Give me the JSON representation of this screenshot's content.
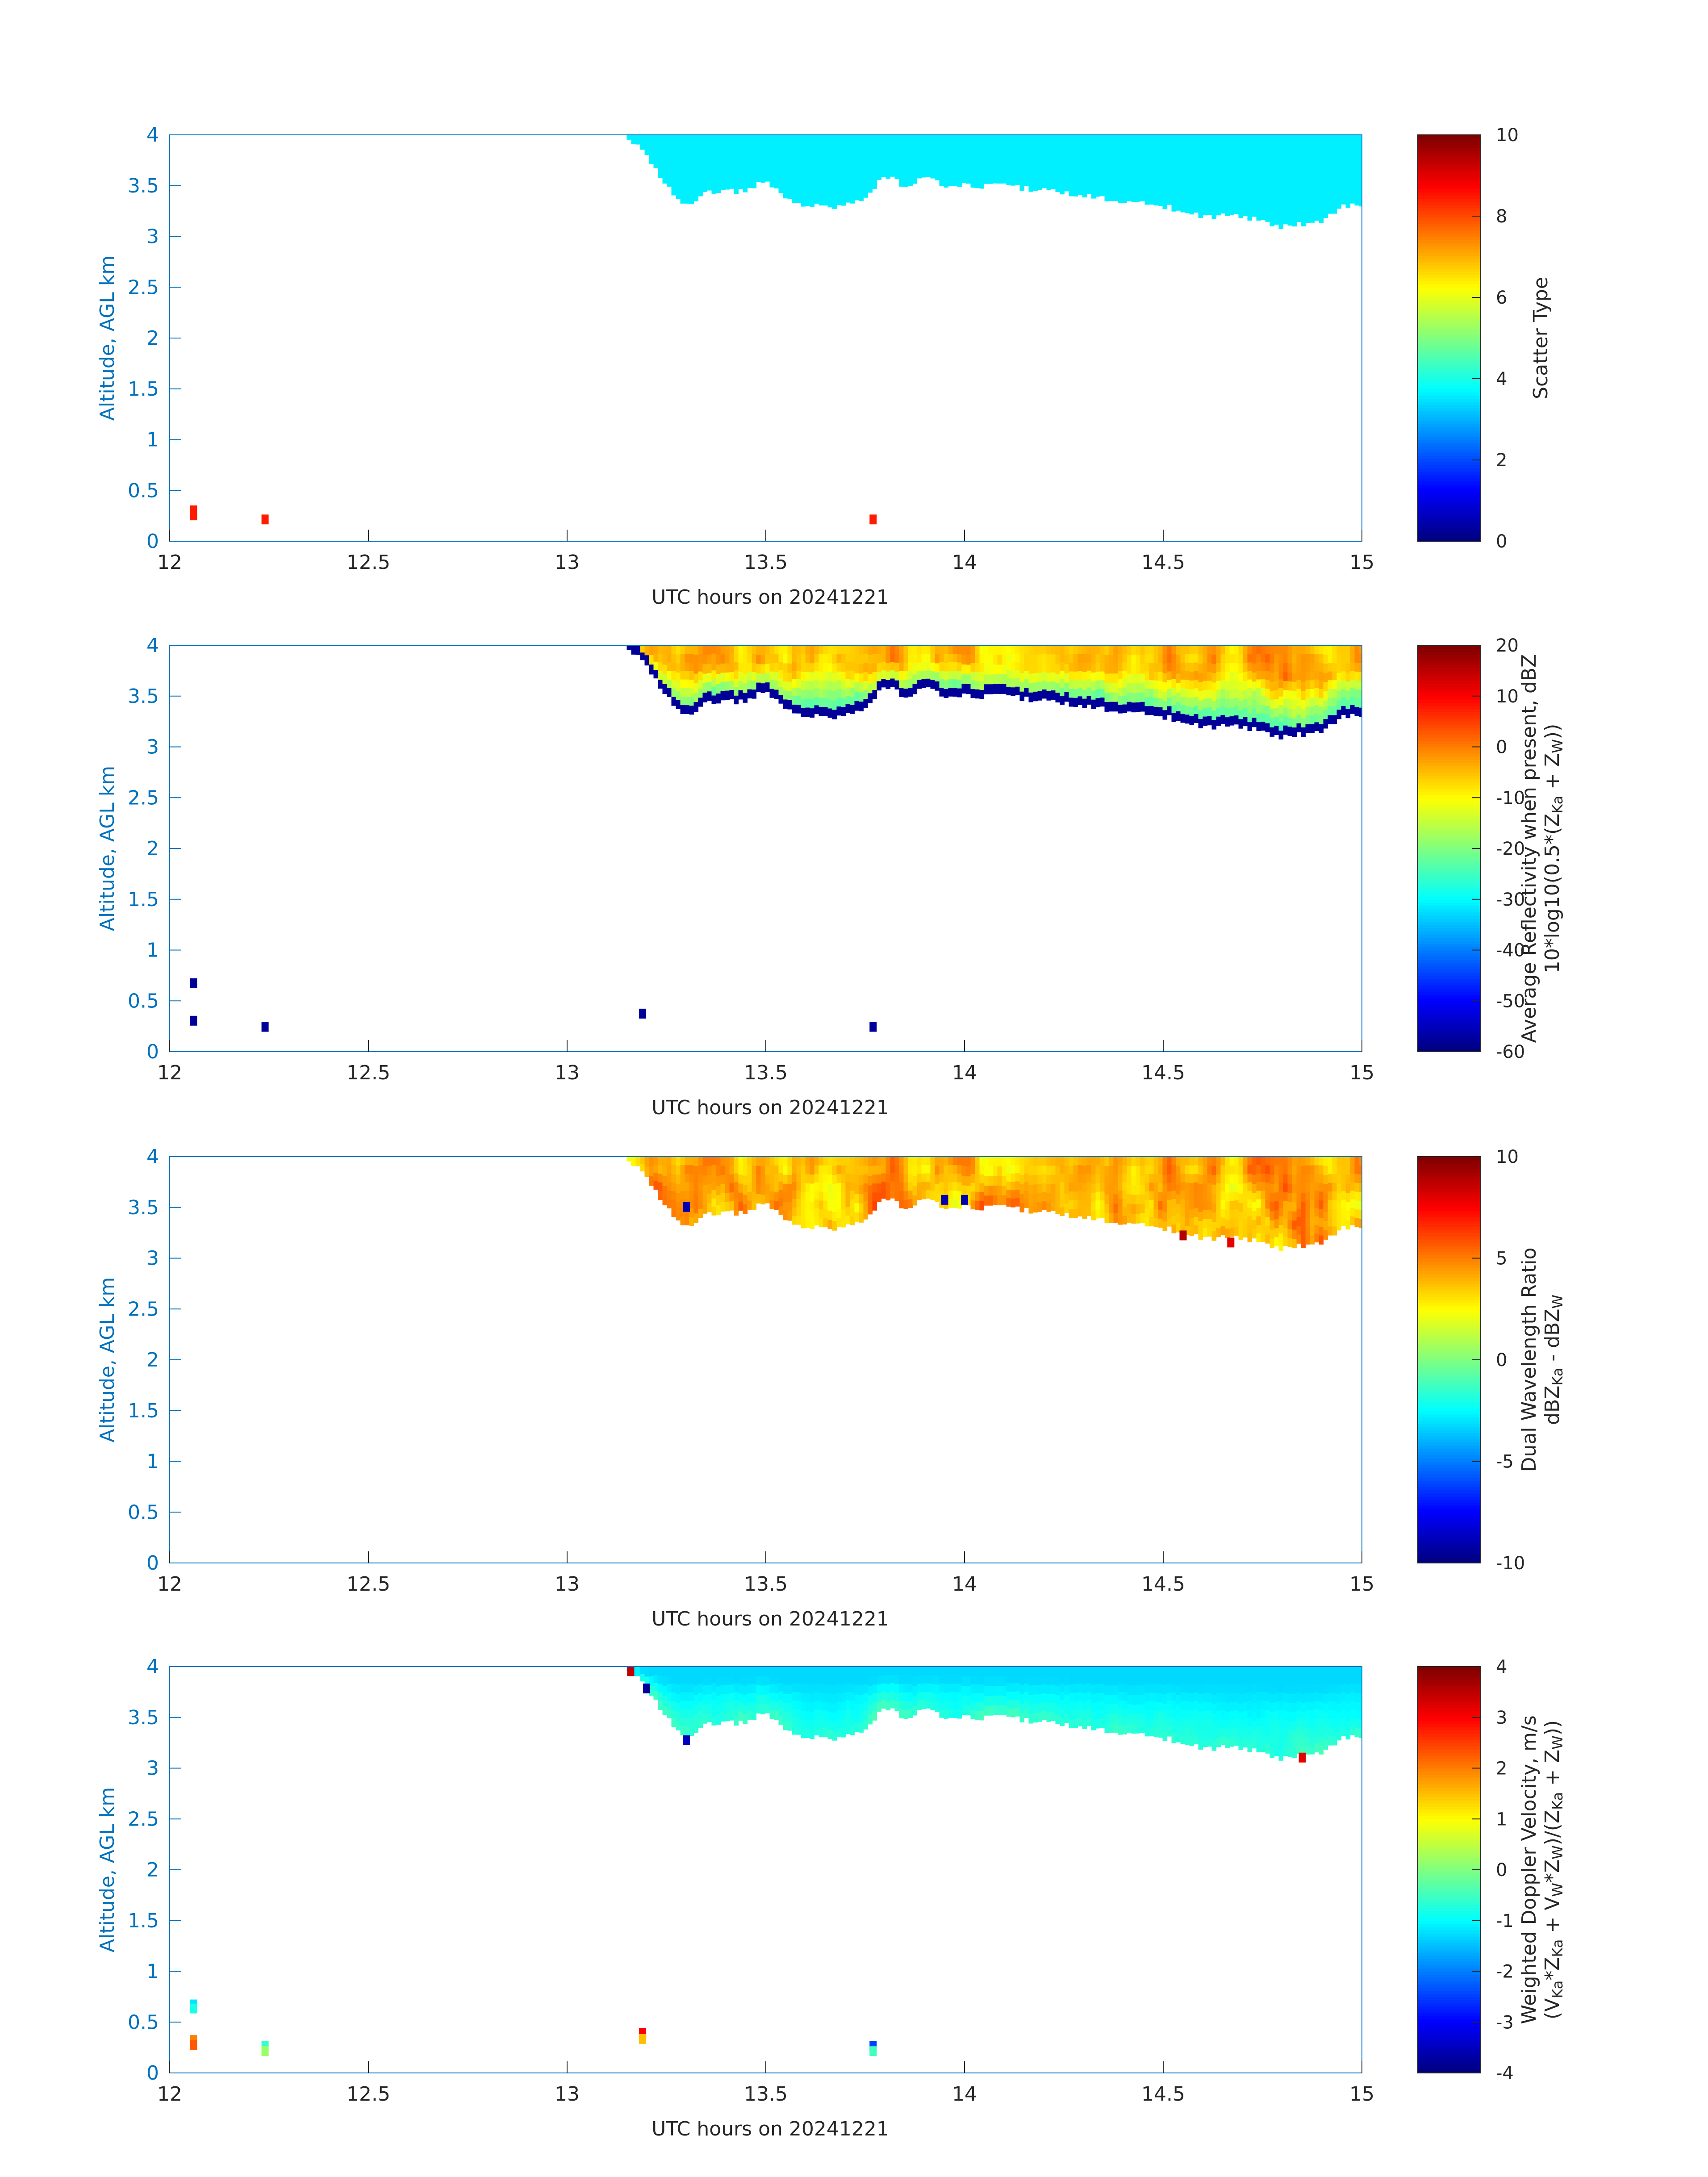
{
  "figure": {
    "background": "#ffffff",
    "axis_color": "#0072BD",
    "text_color": "#262626"
  },
  "chart_data": [
    {
      "type": "heatmap",
      "title": "",
      "xlabel": "UTC hours on 20241221",
      "ylabel": "Altitude, AGL km",
      "xlim": [
        12,
        15
      ],
      "ylim": [
        0,
        4
      ],
      "xticks": [
        "12",
        "12.5",
        "13",
        "13.5",
        "14",
        "14.5",
        "15"
      ],
      "yticks": [
        "0",
        "0.5",
        "1",
        "1.5",
        "2",
        "2.5",
        "3",
        "3.5",
        "4"
      ],
      "colorbar": {
        "label_lines": [
          "Scatter Type"
        ],
        "range": [
          0,
          10
        ],
        "ticks": [
          "0",
          "2",
          "4",
          "6",
          "8",
          "10"
        ],
        "colormap": "jet"
      },
      "layer": {
        "mode": "uniform",
        "value": 3.6
      },
      "cloud_top_km": 4.0,
      "cloud_base_km": [
        [
          13.15,
          4.0
        ],
        [
          13.2,
          3.8
        ],
        [
          13.25,
          3.5
        ],
        [
          13.3,
          3.3
        ],
        [
          13.35,
          3.45
        ],
        [
          13.45,
          3.45
        ],
        [
          13.5,
          3.55
        ],
        [
          13.55,
          3.4
        ],
        [
          13.6,
          3.3
        ],
        [
          13.7,
          3.3
        ],
        [
          13.75,
          3.4
        ],
        [
          13.8,
          3.6
        ],
        [
          13.85,
          3.5
        ],
        [
          13.9,
          3.6
        ],
        [
          13.95,
          3.5
        ],
        [
          14.0,
          3.5
        ],
        [
          14.1,
          3.5
        ],
        [
          14.2,
          3.45
        ],
        [
          14.3,
          3.4
        ],
        [
          14.4,
          3.35
        ],
        [
          14.5,
          3.3
        ],
        [
          14.6,
          3.2
        ],
        [
          14.7,
          3.2
        ],
        [
          14.8,
          3.1
        ],
        [
          14.9,
          3.15
        ],
        [
          14.95,
          3.3
        ],
        [
          15.0,
          3.3
        ]
      ],
      "points": [
        [
          12.06,
          0.3,
          8.5
        ],
        [
          12.06,
          0.25,
          8.5
        ],
        [
          12.24,
          0.21,
          8.5
        ],
        [
          13.77,
          0.21,
          8.5
        ]
      ]
    },
    {
      "type": "heatmap",
      "title": "",
      "xlabel": "UTC hours on 20241221",
      "ylabel": "Altitude, AGL km",
      "xlim": [
        12,
        15
      ],
      "ylim": [
        0,
        4
      ],
      "xticks": [
        "12",
        "12.5",
        "13",
        "13.5",
        "14",
        "14.5",
        "15"
      ],
      "yticks": [
        "0",
        "0.5",
        "1",
        "1.5",
        "2",
        "2.5",
        "3",
        "3.5",
        "4"
      ],
      "colorbar": {
        "label_lines": [
          "Average Reflectivity when present, dBZ",
          "10*log10(0.5*(Z_Ka + Z_W))"
        ],
        "range": [
          -60,
          20
        ],
        "ticks": [
          "-60",
          "-50",
          "-40",
          "-30",
          "-20",
          "-10",
          "0",
          "10",
          "20"
        ],
        "colormap": "jet"
      },
      "layer": {
        "mode": "reflectivity",
        "edge_value": -58,
        "core_range": [
          -35,
          4
        ]
      },
      "cloud_top_km": 4.0,
      "cloud_base_km": [
        [
          13.15,
          4.0
        ],
        [
          13.2,
          3.8
        ],
        [
          13.25,
          3.5
        ],
        [
          13.3,
          3.3
        ],
        [
          13.35,
          3.45
        ],
        [
          13.45,
          3.45
        ],
        [
          13.5,
          3.55
        ],
        [
          13.55,
          3.4
        ],
        [
          13.6,
          3.3
        ],
        [
          13.7,
          3.3
        ],
        [
          13.75,
          3.4
        ],
        [
          13.8,
          3.6
        ],
        [
          13.85,
          3.5
        ],
        [
          13.9,
          3.6
        ],
        [
          13.95,
          3.5
        ],
        [
          14.0,
          3.5
        ],
        [
          14.1,
          3.5
        ],
        [
          14.2,
          3.45
        ],
        [
          14.3,
          3.4
        ],
        [
          14.4,
          3.35
        ],
        [
          14.5,
          3.3
        ],
        [
          14.6,
          3.2
        ],
        [
          14.7,
          3.2
        ],
        [
          14.8,
          3.1
        ],
        [
          14.9,
          3.15
        ],
        [
          14.95,
          3.3
        ],
        [
          15.0,
          3.3
        ]
      ],
      "points": [
        [
          12.06,
          0.67,
          -58
        ],
        [
          12.06,
          0.3,
          -58
        ],
        [
          12.24,
          0.24,
          -58
        ],
        [
          13.19,
          0.37,
          -58
        ],
        [
          13.77,
          0.24,
          -58
        ]
      ]
    },
    {
      "type": "heatmap",
      "title": "",
      "xlabel": "UTC hours on 20241221",
      "ylabel": "Altitude, AGL km",
      "xlim": [
        12,
        15
      ],
      "ylim": [
        0,
        4
      ],
      "xticks": [
        "12",
        "12.5",
        "13",
        "13.5",
        "14",
        "14.5",
        "15"
      ],
      "yticks": [
        "0",
        "0.5",
        "1",
        "1.5",
        "2",
        "2.5",
        "3",
        "3.5",
        "4"
      ],
      "colorbar": {
        "label_lines": [
          "Dual Wavelength Ratio",
          "dBZ_Ka - dBZ_W"
        ],
        "range": [
          -10,
          10
        ],
        "ticks": [
          "-10",
          "-5",
          "0",
          "5",
          "10"
        ],
        "colormap": "jet"
      },
      "layer": {
        "mode": "dwr",
        "range": [
          1.5,
          6.5
        ]
      },
      "cloud_top_km": 4.0,
      "cloud_base_km": [
        [
          13.15,
          4.0
        ],
        [
          13.2,
          3.8
        ],
        [
          13.25,
          3.5
        ],
        [
          13.3,
          3.3
        ],
        [
          13.35,
          3.45
        ],
        [
          13.45,
          3.45
        ],
        [
          13.5,
          3.55
        ],
        [
          13.55,
          3.4
        ],
        [
          13.6,
          3.3
        ],
        [
          13.7,
          3.3
        ],
        [
          13.75,
          3.4
        ],
        [
          13.8,
          3.6
        ],
        [
          13.85,
          3.5
        ],
        [
          13.9,
          3.6
        ],
        [
          13.95,
          3.5
        ],
        [
          14.0,
          3.5
        ],
        [
          14.1,
          3.5
        ],
        [
          14.2,
          3.45
        ],
        [
          14.3,
          3.4
        ],
        [
          14.4,
          3.35
        ],
        [
          14.5,
          3.3
        ],
        [
          14.6,
          3.2
        ],
        [
          14.7,
          3.2
        ],
        [
          14.8,
          3.1
        ],
        [
          14.9,
          3.15
        ],
        [
          14.95,
          3.3
        ],
        [
          15.0,
          3.3
        ]
      ],
      "points": [
        [
          13.3,
          3.5,
          -9
        ],
        [
          13.95,
          3.57,
          -9
        ],
        [
          14.0,
          3.57,
          -9
        ],
        [
          14.55,
          3.22,
          9
        ],
        [
          14.67,
          3.15,
          8
        ]
      ]
    },
    {
      "type": "heatmap",
      "title": "",
      "xlabel": "UTC hours on 20241221",
      "ylabel": "Altitude, AGL km",
      "xlim": [
        12,
        15
      ],
      "ylim": [
        0,
        4
      ],
      "xticks": [
        "12",
        "12.5",
        "13",
        "13.5",
        "14",
        "14.5",
        "15"
      ],
      "yticks": [
        "0",
        "0.5",
        "1",
        "1.5",
        "2",
        "2.5",
        "3",
        "3.5",
        "4"
      ],
      "colorbar": {
        "label_lines": [
          "Weighted Doppler Velocity, m/s",
          "(V_Ka*Z_Ka + V_W*Z_W)/(Z_Ka + Z_W))"
        ],
        "range": [
          -4,
          4
        ],
        "ticks": [
          "-4",
          "-3",
          "-2",
          "-1",
          "0",
          "1",
          "2",
          "3",
          "4"
        ],
        "colormap": "jet"
      },
      "layer": {
        "mode": "velocity",
        "range": [
          -1.3,
          -0.3
        ]
      },
      "cloud_top_km": 4.0,
      "cloud_base_km": [
        [
          13.15,
          4.0
        ],
        [
          13.2,
          3.8
        ],
        [
          13.25,
          3.5
        ],
        [
          13.3,
          3.3
        ],
        [
          13.35,
          3.45
        ],
        [
          13.45,
          3.45
        ],
        [
          13.5,
          3.55
        ],
        [
          13.55,
          3.4
        ],
        [
          13.6,
          3.3
        ],
        [
          13.7,
          3.3
        ],
        [
          13.75,
          3.4
        ],
        [
          13.8,
          3.6
        ],
        [
          13.85,
          3.5
        ],
        [
          13.9,
          3.6
        ],
        [
          13.95,
          3.5
        ],
        [
          14.0,
          3.5
        ],
        [
          14.1,
          3.5
        ],
        [
          14.2,
          3.45
        ],
        [
          14.3,
          3.4
        ],
        [
          14.4,
          3.35
        ],
        [
          14.5,
          3.3
        ],
        [
          14.6,
          3.2
        ],
        [
          14.7,
          3.2
        ],
        [
          14.8,
          3.1
        ],
        [
          14.9,
          3.15
        ],
        [
          14.95,
          3.3
        ],
        [
          15.0,
          3.3
        ]
      ],
      "points": [
        [
          12.06,
          0.67,
          -1.2
        ],
        [
          12.06,
          0.63,
          -0.8
        ],
        [
          12.06,
          0.32,
          2.0
        ],
        [
          12.06,
          0.27,
          2.3
        ],
        [
          12.24,
          0.26,
          -0.6
        ],
        [
          12.24,
          0.21,
          0.2
        ],
        [
          13.19,
          0.39,
          3.0
        ],
        [
          13.19,
          0.33,
          1.5
        ],
        [
          13.77,
          0.26,
          -2.5
        ],
        [
          13.77,
          0.21,
          -0.5
        ],
        [
          13.16,
          3.95,
          3.5
        ],
        [
          13.2,
          3.78,
          -3.8
        ],
        [
          13.3,
          3.27,
          -3.5
        ],
        [
          14.85,
          3.1,
          3.2
        ]
      ]
    }
  ]
}
